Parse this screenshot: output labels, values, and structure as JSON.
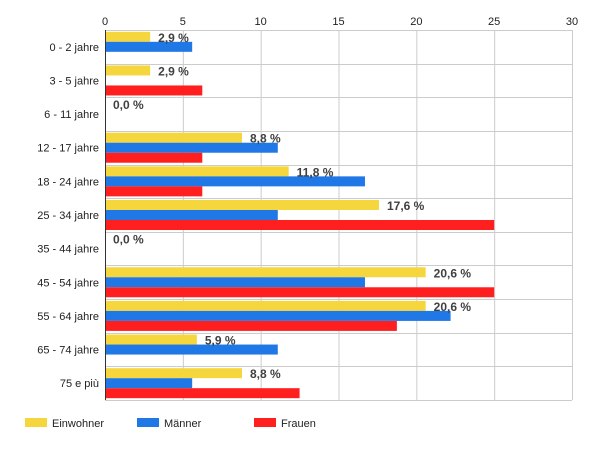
{
  "chart_data": {
    "type": "bar",
    "orientation": "horizontal",
    "categories": [
      "0 - 2 jahre",
      "3 - 5 jahre",
      "6 - 11 jahre",
      "12 - 17 jahre",
      "18 - 24 jahre",
      "25 - 34 jahre",
      "35 - 44 jahre",
      "45 - 54 jahre",
      "55 - 64 jahre",
      "65 - 74 jahre",
      "75 e più"
    ],
    "series": [
      {
        "name": "Einwohner",
        "color": "#f5d63d",
        "values": [
          2.9,
          2.9,
          0.0,
          8.8,
          11.8,
          17.6,
          0.0,
          20.6,
          20.6,
          5.9,
          8.8
        ]
      },
      {
        "name": "Männer",
        "color": "#1f78e6",
        "values": [
          5.6,
          0,
          0,
          11.1,
          16.7,
          11.1,
          0,
          16.7,
          22.2,
          11.1,
          5.6
        ]
      },
      {
        "name": "Frauen",
        "color": "#ff1f1f",
        "values": [
          0,
          6.25,
          0,
          6.25,
          6.25,
          25.0,
          0,
          25.0,
          18.75,
          0,
          12.5
        ]
      }
    ],
    "data_labels": [
      "2,9 %",
      "2,9 %",
      "0,0 %",
      "8,8 %",
      "11,8 %",
      "17,6 %",
      "0,0 %",
      "20,6 %",
      "20,6 %",
      "5,9 %",
      "8,8 %"
    ],
    "xlim": [
      0,
      30
    ],
    "xticks": [
      0,
      5,
      10,
      15,
      20,
      25,
      30
    ],
    "grid": true,
    "legend_position": "bottom-left",
    "title": "",
    "xlabel": "",
    "ylabel": ""
  }
}
